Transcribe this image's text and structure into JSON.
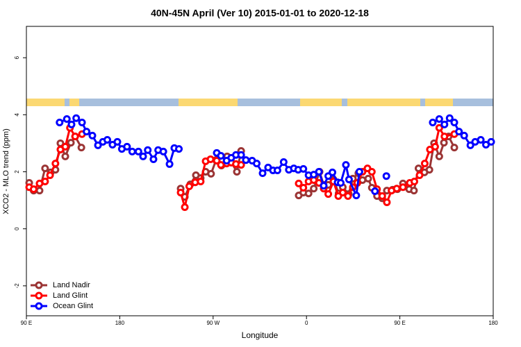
{
  "chart_data": {
    "type": "line",
    "title": "40N-45N April (Ver 10)   2015-01-01 to 2020-12-18",
    "x_label": "Longitude",
    "y_label": "XCO2 - MLO trend (ppm)",
    "xlim": [
      90,
      540
    ],
    "xticks": [
      {
        "value": 90,
        "label": "90 E"
      },
      180,
      {
        "value": 270,
        "label": "90 W"
      },
      {
        "value": 360,
        "label": "0"
      },
      {
        "value": 450,
        "label": "90 E"
      },
      {
        "value": 540,
        "label": "180"
      }
    ],
    "ylim": [
      -3.05,
      7.1
    ],
    "yticks": [
      -2,
      0,
      2,
      4,
      6
    ],
    "grid": false,
    "legend": "bottomleft",
    "series": [
      {
        "name": "Land Nadir",
        "color": "#9b3434",
        "x": [
          92.7,
          97,
          102.7,
          108,
          113.4,
          118,
          122.8,
          127.5,
          132.9,
          137,
          143,
          null,
          238.7,
          242.7,
          248,
          253.4,
          258,
          262.8,
          268,
          272.8,
          278,
          283.5,
          287.5,
          292.9,
          297,
          null,
          352.5,
          357,
          362,
          367,
          372.6,
          376.6,
          381,
          386,
          391,
          395,
          400.7,
          404.7,
          410,
          414,
          419.5,
          423,
          428,
          433,
          437.5,
          443,
          447.6,
          453,
          459,
          463.6,
          468,
          473.7,
          478.5,
          483,
          488,
          492.5,
          497,
          502.5
        ],
        "values": [
          1.61,
          1.34,
          1.34,
          2.12,
          1.98,
          2.07,
          3.0,
          2.54,
          3.02,
          3.24,
          2.85,
          null,
          1.41,
          1.12,
          1.56,
          1.88,
          1.78,
          2.0,
          1.93,
          2.41,
          2.22,
          2.54,
          2.34,
          2.0,
          2.73,
          null,
          1.17,
          1.27,
          1.24,
          1.41,
          2.0,
          1.54,
          1.54,
          1.73,
          1.24,
          1.46,
          1.22,
          1.76,
          1.95,
          1.71,
          1.76,
          1.44,
          1.15,
          1.07,
          1.34,
          1.37,
          1.39,
          1.59,
          1.39,
          1.34,
          2.12,
          1.98,
          2.07,
          3.0,
          2.54,
          3.02,
          3.24,
          2.85
        ]
      },
      {
        "name": "Land Glint",
        "color": "#ff0000",
        "x": [
          92.7,
          97,
          102.7,
          108,
          112.8,
          118,
          122.8,
          127.5,
          132,
          137,
          143.6,
          null,
          238.7,
          242.7,
          247,
          252.7,
          258,
          262.8,
          267.5,
          273.5,
          277.5,
          283,
          287.5,
          292,
          297,
          null,
          352.5,
          357,
          362,
          367,
          372,
          376.6,
          381,
          386,
          390.7,
          395,
          400,
          404.7,
          409,
          414,
          418.8,
          423,
          428,
          433,
          437.5,
          442,
          447,
          453,
          459.6,
          464,
          469,
          474,
          479,
          484,
          488,
          493,
          502.5
        ],
        "values": [
          1.46,
          1.39,
          1.59,
          1.66,
          1.88,
          2.29,
          2.78,
          2.88,
          3.54,
          3.24,
          3.32,
          null,
          1.27,
          0.76,
          1.49,
          1.63,
          1.66,
          2.37,
          2.44,
          2.39,
          2.24,
          2.29,
          2.32,
          2.27,
          2.24,
          null,
          1.59,
          1.44,
          1.66,
          1.71,
          1.61,
          1.41,
          1.22,
          1.66,
          1.15,
          1.27,
          1.15,
          1.46,
          1.61,
          2.0,
          2.12,
          2.0,
          1.39,
          1.15,
          0.93,
          1.34,
          1.41,
          1.46,
          1.61,
          1.66,
          1.88,
          2.29,
          2.78,
          2.88,
          3.54,
          3.24,
          3.32
        ]
      },
      {
        "name": "Ocean Glint",
        "color": "#0000ff",
        "x": [
          122,
          129,
          133.5,
          138,
          143.6,
          148,
          153.6,
          159,
          163.7,
          168,
          173,
          177.7,
          182,
          187,
          192,
          198,
          202.5,
          207,
          212.5,
          217,
          222,
          228,
          232.6,
          237,
          null,
          273.5,
          277.5,
          283,
          287.5,
          292,
          297,
          301.6,
          307.6,
          312,
          317.7,
          323,
          327.7,
          332,
          338,
          343,
          347.8,
          352,
          357,
          362,
          367,
          372,
          376.6,
          381,
          385,
          390,
          393,
          398,
          401,
          408,
          411,
          null,
          426,
          null,
          437,
          null,
          481.7,
          488,
          493,
          498,
          502.5,
          507,
          512,
          518,
          522.6,
          528,
          533,
          538
        ],
        "values": [
          3.73,
          3.85,
          3.66,
          3.88,
          3.73,
          3.41,
          3.27,
          2.93,
          3.05,
          3.12,
          2.95,
          3.05,
          2.8,
          2.88,
          2.71,
          2.71,
          2.54,
          2.76,
          2.44,
          2.76,
          2.71,
          2.27,
          2.83,
          2.8,
          null,
          2.66,
          2.56,
          2.39,
          2.49,
          2.59,
          2.59,
          2.41,
          2.39,
          2.29,
          1.95,
          2.15,
          2.05,
          2.05,
          2.34,
          2.07,
          2.12,
          2.07,
          2.1,
          1.88,
          1.9,
          2.0,
          1.51,
          1.85,
          1.98,
          1.63,
          1.61,
          2.24,
          1.73,
          1.17,
          2.0,
          null,
          1.32,
          null,
          1.85,
          null,
          3.73,
          3.85,
          3.66,
          3.88,
          3.73,
          3.41,
          3.27,
          2.93,
          3.05,
          3.12,
          2.95,
          3.05
        ]
      }
    ]
  }
}
